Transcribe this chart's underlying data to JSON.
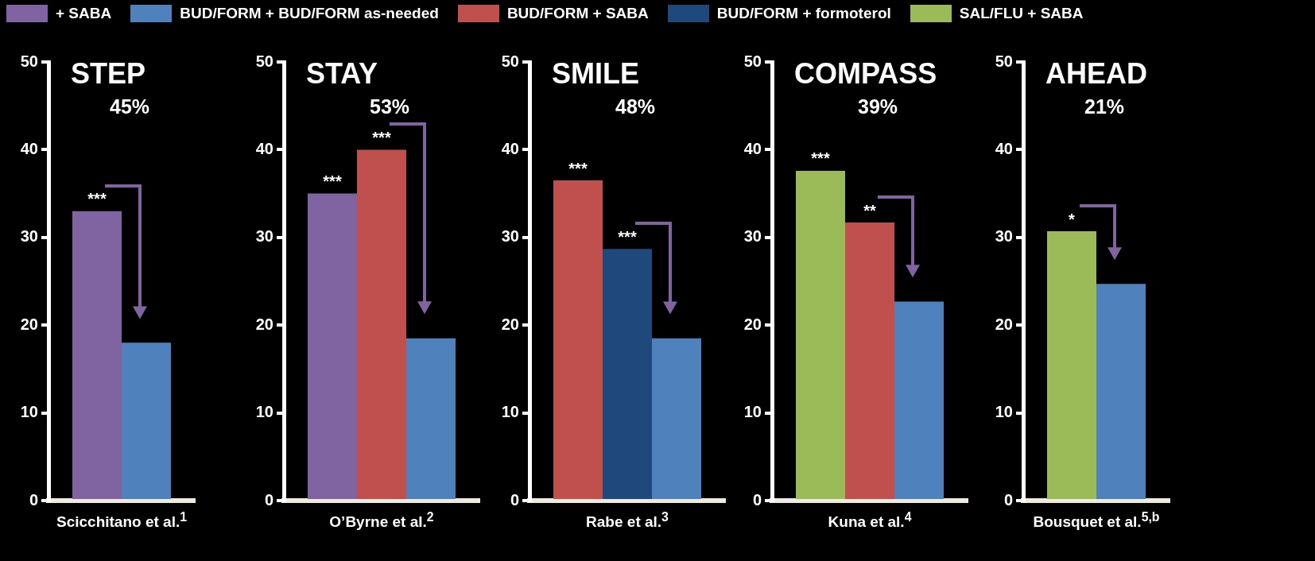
{
  "chart_data": [
    {
      "type": "bar",
      "title": "STEP",
      "subtitle": "45%",
      "xlabel": "Scicchitano et al.$^{1}$",
      "categories": [
        null
      ],
      "legend": "top",
      "ylim": [
        0,
        50
      ],
      "yticks": [
        0,
        10,
        20,
        30,
        40,
        50
      ],
      "grid": false,
      "series": [
        {
          "name": "+ SABA",
          "color": "#8064a2",
          "values": [
            33
          ],
          "value_labels": [
            "***"
          ]
        },
        {
          "name": "BUD/FORM + BUD/FORM as-needed",
          "color": "#4f81bd",
          "values": [
            18
          ]
        }
      ]
    },
    {
      "type": "bar",
      "title": "STAY",
      "subtitle": "53%",
      "xlabel": "O’Byrne et al.$^{2}$",
      "categories": [
        null
      ],
      "legend": "top",
      "ylim": [
        0,
        50
      ],
      "yticks": [
        0,
        10,
        20,
        30,
        40,
        50
      ],
      "grid": false,
      "series": [
        {
          "color": "#8064a2",
          "values": [
            35
          ],
          "value_labels": [
            "***"
          ]
        },
        {
          "name": "BUD/FORM + SABA",
          "color": "#c0504d",
          "values": [
            40
          ],
          "value_labels": [
            "***"
          ]
        },
        {
          "color": "#4f81bd",
          "values": [
            18.5
          ]
        }
      ]
    },
    {
      "type": "bar",
      "title": "SMILE",
      "subtitle": "48%",
      "xlabel": "Rabe et al.$^{3}$",
      "categories": [
        null
      ],
      "legend": "top",
      "ylim": [
        0,
        50
      ],
      "yticks": [
        0,
        10,
        20,
        30,
        40,
        50
      ],
      "grid": false,
      "series": [
        {
          "color": "#c0504d",
          "values": [
            36.5
          ],
          "value_labels": [
            "***"
          ]
        },
        {
          "name": "BUD/FORM + formoterol",
          "color": "#1f497d",
          "values": [
            28.7
          ],
          "value_labels": [
            "***"
          ]
        },
        {
          "color": "#4f81bd",
          "values": [
            18.5
          ]
        }
      ]
    },
    {
      "type": "bar",
      "title": "COMPASS",
      "subtitle": "39%",
      "xlabel": "Kuna et al.$^{4}$",
      "categories": [
        null
      ],
      "legend": "top",
      "ylim": [
        0,
        50
      ],
      "yticks": [
        0,
        10,
        20,
        30,
        40,
        50
      ],
      "grid": false,
      "series": [
        {
          "name": "SAL/FLU + SABA",
          "color": "#9bbb59",
          "values": [
            37.6
          ],
          "value_labels": [
            "***"
          ]
        },
        {
          "color": "#c0504d",
          "values": [
            31.7
          ],
          "value_labels": [
            "**"
          ]
        },
        {
          "color": "#4f81bd",
          "values": [
            22.7
          ]
        }
      ]
    },
    {
      "type": "bar",
      "title": "AHEAD",
      "subtitle": "21%",
      "xlabel": "Bousquet et al.$^{5,b}$",
      "categories": [
        null
      ],
      "legend": "top",
      "ylim": [
        0,
        50
      ],
      "yticks": [
        0,
        10,
        20,
        30,
        40,
        50
      ],
      "grid": false,
      "series": [
        {
          "color": "#9bbb59",
          "values": [
            30.7
          ],
          "value_labels": [
            "*"
          ]
        },
        {
          "color": "#4f81bd",
          "values": [
            24.7
          ]
        }
      ]
    }
  ]
}
